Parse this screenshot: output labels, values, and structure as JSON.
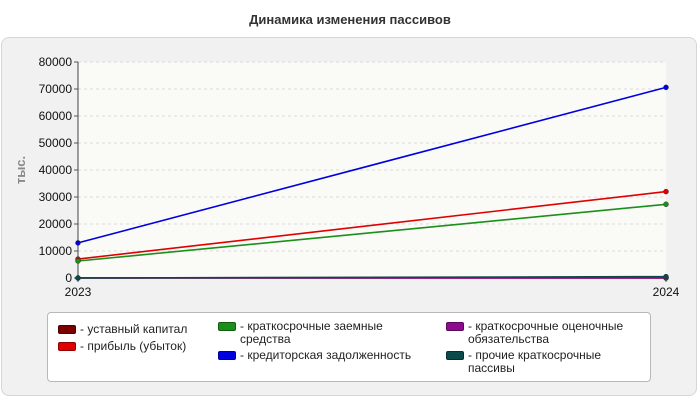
{
  "chart_data": {
    "type": "line",
    "title": "Динамика изменения пассивов",
    "ylabel": "тыс.",
    "xlabel": "",
    "x": [
      "2023",
      "2024"
    ],
    "ylim": [
      0,
      80000
    ],
    "yticks": [
      0,
      10000,
      20000,
      30000,
      40000,
      50000,
      60000,
      70000,
      80000
    ],
    "grid": true,
    "legend_position": "bottom",
    "series": [
      {
        "name": "уставный капитал",
        "values": [
          10,
          10
        ],
        "color": "#7a0000"
      },
      {
        "name": "прибыль (убыток)",
        "values": [
          7000,
          32000
        ],
        "color": "#e00000"
      },
      {
        "name": "краткосрочные заемные средства",
        "values": [
          6300,
          27300
        ],
        "color": "#1a8f1a"
      },
      {
        "name": "кредиторская задолженность",
        "values": [
          13000,
          70600
        ],
        "color": "#0000e0"
      },
      {
        "name": "краткосрочные оценочные обязательства",
        "values": [
          0,
          0
        ],
        "color": "#8e0a8e"
      },
      {
        "name": "прочие краткосрочные пассивы",
        "values": [
          0,
          500
        ],
        "color": "#0a4a4a"
      }
    ]
  }
}
